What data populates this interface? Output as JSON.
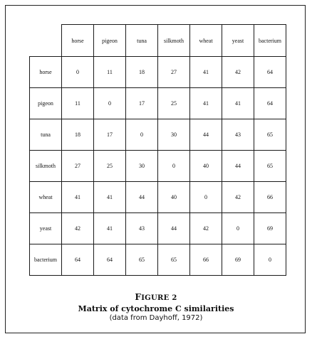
{
  "table": {
    "columns": [
      "horse",
      "pigeon",
      "tuna",
      "silkmoth",
      "wheat",
      "yeast",
      "bacterium"
    ],
    "rows": [
      {
        "label": "horse",
        "values": [
          "0",
          "11",
          "18",
          "27",
          "41",
          "42",
          "64"
        ]
      },
      {
        "label": "pigeon",
        "values": [
          "11",
          "0",
          "17",
          "25",
          "41",
          "41",
          "64"
        ]
      },
      {
        "label": "tuna",
        "values": [
          "18",
          "17",
          "0",
          "30",
          "44",
          "43",
          "65"
        ]
      },
      {
        "label": "silkmoth",
        "values": [
          "27",
          "25",
          "30",
          "0",
          "40",
          "44",
          "65"
        ]
      },
      {
        "label": "wheat",
        "values": [
          "41",
          "41",
          "44",
          "40",
          "0",
          "42",
          "66"
        ]
      },
      {
        "label": "yeast",
        "values": [
          "42",
          "41",
          "43",
          "44",
          "42",
          "0",
          "69"
        ]
      },
      {
        "label": "bacterium",
        "values": [
          "64",
          "64",
          "65",
          "65",
          "66",
          "69",
          "0"
        ]
      }
    ]
  },
  "caption": {
    "figure_first": "F",
    "figure_rest": "IGURE 2",
    "title": "Matrix of cytochrome C similarities",
    "source": "(data from Dayhoff, 1972)"
  }
}
